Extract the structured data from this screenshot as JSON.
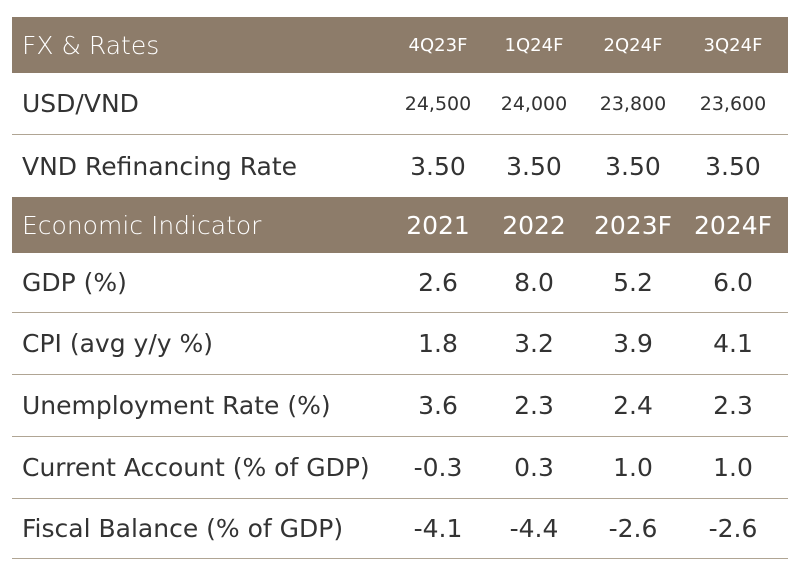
{
  "fx_header": {
    "label": "FX & Rates",
    "cols": [
      "4Q23F",
      "1Q24F",
      "2Q24F",
      "3Q24F"
    ]
  },
  "fx_rows": [
    {
      "label": "USD/VND",
      "values": [
        "24,500",
        "24,000",
        "23,800",
        "23,600"
      ]
    },
    {
      "label": "VND Refinancing Rate",
      "values": [
        "3.50",
        "3.50",
        "3.50",
        "3.50"
      ]
    }
  ],
  "econ_header": {
    "label": "Economic Indicator",
    "cols": [
      "2021",
      "2022",
      "2023F",
      "2024F"
    ]
  },
  "econ_rows": [
    {
      "label": "GDP (%)",
      "values": [
        "2.6",
        "8.0",
        "5.2",
        "6.0"
      ]
    },
    {
      "label": "CPI (avg y/y %)",
      "values": [
        "1.8",
        "3.2",
        "3.9",
        "4.1"
      ]
    },
    {
      "label": "Unemployment Rate (%)",
      "values": [
        "3.6",
        "2.3",
        "2.4",
        "2.3"
      ]
    },
    {
      "label": "Current Account (% of GDP)",
      "values": [
        "-0.3",
        "0.3",
        "1.0",
        "1.0"
      ]
    },
    {
      "label": "Fiscal Balance (% of GDP)",
      "values": [
        "-4.1",
        "-4.4",
        "-2.6",
        "-2.6"
      ]
    }
  ],
  "colors": {
    "header_bg": "#8d7c6a",
    "header_text": "#ffffff",
    "body_text": "#333333",
    "divider": "#b0a594"
  }
}
